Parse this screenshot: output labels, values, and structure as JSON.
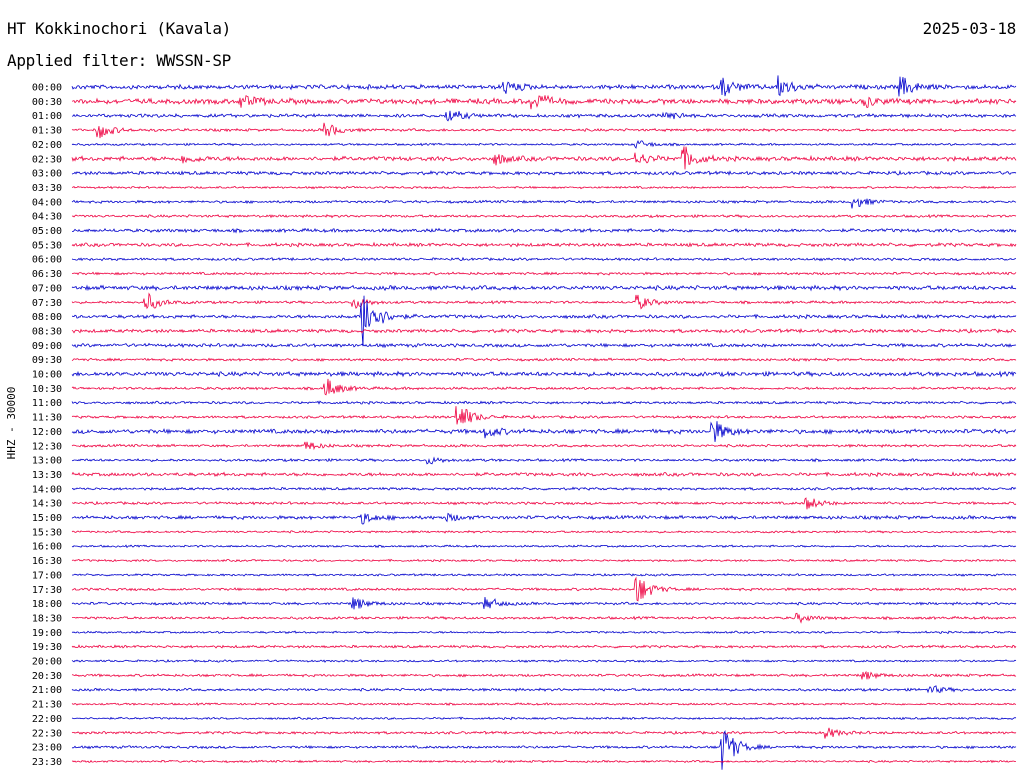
{
  "header": {
    "station": "HT Kokkinochori (Kavala)",
    "date": "2025-03-18",
    "filter": "Applied filter: WWSSN-SP"
  },
  "chart_data": {
    "type": "line",
    "title": "HT Kokkinochori (Kavala)",
    "ylabel": "HHZ - 30000",
    "xlabel": "",
    "row_labels": [
      "00:00",
      "00:30",
      "01:00",
      "01:30",
      "02:00",
      "02:30",
      "03:00",
      "03:30",
      "04:00",
      "04:30",
      "05:00",
      "05:30",
      "06:00",
      "06:30",
      "07:00",
      "07:30",
      "08:00",
      "08:30",
      "09:00",
      "09:30",
      "10:00",
      "10:30",
      "11:00",
      "11:30",
      "12:00",
      "12:30",
      "13:00",
      "13:30",
      "14:00",
      "14:30",
      "15:00",
      "15:30",
      "16:00",
      "16:30",
      "17:00",
      "17:30",
      "18:00",
      "18:30",
      "19:00",
      "19:30",
      "20:00",
      "20:30",
      "21:00",
      "21:30",
      "22:00",
      "22:30",
      "23:00",
      "23:30"
    ],
    "series_colors": [
      "#0000cc",
      "#ee0040"
    ],
    "row_noise": [
      2.5,
      3,
      2,
      1.5,
      1.2,
      2.5,
      2,
      1.2,
      1.5,
      1.5,
      2,
      2,
      1.5,
      1.5,
      2.5,
      1.5,
      2,
      2,
      2,
      1.5,
      2.5,
      1.5,
      1.5,
      1.5,
      2.5,
      1.5,
      1.5,
      2,
      1.5,
      1.5,
      2,
      1.2,
      1.2,
      1.2,
      1.2,
      1.5,
      1.5,
      1.5,
      1.2,
      1.5,
      1.2,
      1.5,
      1.5,
      1.2,
      1.2,
      1.5,
      1.5,
      1.2
    ],
    "events": [
      {
        "row": 0,
        "x": 0.46,
        "amp": 6
      },
      {
        "row": 0,
        "x": 0.69,
        "amp": 9
      },
      {
        "row": 0,
        "x": 0.75,
        "amp": 10
      },
      {
        "row": 0,
        "x": 0.88,
        "amp": 9
      },
      {
        "row": 1,
        "x": 0.18,
        "amp": 6
      },
      {
        "row": 1,
        "x": 0.49,
        "amp": 8
      },
      {
        "row": 1,
        "x": 0.84,
        "amp": 5
      },
      {
        "row": 2,
        "x": 0.4,
        "amp": 6
      },
      {
        "row": 2,
        "x": 0.63,
        "amp": 4
      },
      {
        "row": 3,
        "x": 0.03,
        "amp": 8
      },
      {
        "row": 3,
        "x": 0.27,
        "amp": 7
      },
      {
        "row": 4,
        "x": 0.6,
        "amp": 4
      },
      {
        "row": 5,
        "x": 0.12,
        "amp": 4
      },
      {
        "row": 5,
        "x": 0.45,
        "amp": 5
      },
      {
        "row": 5,
        "x": 0.6,
        "amp": 6
      },
      {
        "row": 5,
        "x": 0.65,
        "amp": 10
      },
      {
        "row": 8,
        "x": 0.83,
        "amp": 6
      },
      {
        "row": 15,
        "x": 0.08,
        "amp": 9
      },
      {
        "row": 15,
        "x": 0.3,
        "amp": 6
      },
      {
        "row": 15,
        "x": 0.6,
        "amp": 7
      },
      {
        "row": 16,
        "x": 0.31,
        "amp": 30
      },
      {
        "row": 21,
        "x": 0.27,
        "amp": 10
      },
      {
        "row": 23,
        "x": 0.41,
        "amp": 14
      },
      {
        "row": 24,
        "x": 0.44,
        "amp": 5
      },
      {
        "row": 24,
        "x": 0.68,
        "amp": 11
      },
      {
        "row": 25,
        "x": 0.25,
        "amp": 4
      },
      {
        "row": 26,
        "x": 0.38,
        "amp": 3
      },
      {
        "row": 29,
        "x": 0.78,
        "amp": 6
      },
      {
        "row": 30,
        "x": 0.31,
        "amp": 5
      },
      {
        "row": 30,
        "x": 0.4,
        "amp": 3
      },
      {
        "row": 35,
        "x": 0.6,
        "amp": 14
      },
      {
        "row": 36,
        "x": 0.3,
        "amp": 6
      },
      {
        "row": 36,
        "x": 0.44,
        "amp": 6
      },
      {
        "row": 37,
        "x": 0.77,
        "amp": 4
      },
      {
        "row": 41,
        "x": 0.84,
        "amp": 4
      },
      {
        "row": 42,
        "x": 0.91,
        "amp": 4
      },
      {
        "row": 45,
        "x": 0.8,
        "amp": 5
      },
      {
        "row": 46,
        "x": 0.69,
        "amp": 22
      }
    ]
  }
}
